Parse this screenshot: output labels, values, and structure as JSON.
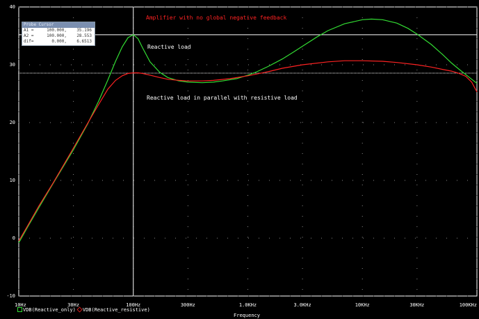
{
  "chart_data": {
    "type": "line",
    "x_scale": "log",
    "xlim": [
      10,
      100000
    ],
    "ylim": [
      -10,
      40
    ],
    "grid": "dotted",
    "x_ticks": [
      {
        "value": 10,
        "label": "10Hz"
      },
      {
        "value": 30,
        "label": "30Hz"
      },
      {
        "value": 100,
        "label": "100Hz"
      },
      {
        "value": 300,
        "label": "300Hz"
      },
      {
        "value": 1000,
        "label": "1.0KHz"
      },
      {
        "value": 3000,
        "label": "3.0KHz"
      },
      {
        "value": 10000,
        "label": "10KHz"
      },
      {
        "value": 30000,
        "label": "30KHz"
      },
      {
        "value": 100000,
        "label": "100KHz"
      }
    ],
    "y_ticks": [
      {
        "value": 40,
        "label": "40"
      },
      {
        "value": 30,
        "label": "30"
      },
      {
        "value": 20,
        "label": "20"
      },
      {
        "value": 10,
        "label": "10"
      },
      {
        "value": 0,
        "label": "0"
      },
      {
        "value": -10,
        "label": "-10"
      }
    ],
    "xlabel": "Frequency",
    "series": [
      {
        "name": "VDB(Reactive_only)",
        "color": "#33dd33",
        "x": [
          10,
          12,
          15,
          20,
          25,
          30,
          40,
          50,
          60,
          70,
          80,
          90,
          100,
          110,
          120,
          140,
          170,
          200,
          250,
          300,
          400,
          500,
          600,
          800,
          1000,
          1200,
          1500,
          2000,
          2500,
          3000,
          4000,
          5000,
          7000,
          10000,
          12000,
          15000,
          20000,
          25000,
          30000,
          40000,
          50000,
          60000,
          70000,
          80000,
          90000,
          100000
        ],
        "y": [
          -0.8,
          2.0,
          5.3,
          9.5,
          12.7,
          15.3,
          19.8,
          23.8,
          27.4,
          30.6,
          33.1,
          34.7,
          35.2,
          34.5,
          33.0,
          30.5,
          28.7,
          27.8,
          27.2,
          27.0,
          26.9,
          27.0,
          27.2,
          27.6,
          28.2,
          28.8,
          29.7,
          31.0,
          32.2,
          33.2,
          34.8,
          35.9,
          37.1,
          37.8,
          37.9,
          37.8,
          37.2,
          36.3,
          35.3,
          33.5,
          31.8,
          30.3,
          29.2,
          28.3,
          27.5,
          26.8
        ]
      },
      {
        "name": "VDB(Reactive_resistive)",
        "color": "#ff2222",
        "x": [
          10,
          12,
          15,
          20,
          25,
          30,
          40,
          50,
          60,
          70,
          80,
          90,
          100,
          110,
          120,
          140,
          170,
          200,
          250,
          300,
          400,
          500,
          700,
          1000,
          1500,
          2000,
          3000,
          5000,
          7000,
          10000,
          15000,
          20000,
          30000,
          40000,
          50000,
          60000,
          70000,
          80000,
          90000,
          100000
        ],
        "y": [
          -0.5,
          2.2,
          5.6,
          9.6,
          12.9,
          15.6,
          19.9,
          23.2,
          25.8,
          27.3,
          28.1,
          28.5,
          28.6,
          28.6,
          28.5,
          28.2,
          27.8,
          27.5,
          27.3,
          27.2,
          27.2,
          27.3,
          27.6,
          28.1,
          28.8,
          29.4,
          30.0,
          30.5,
          30.7,
          30.7,
          30.6,
          30.4,
          30.0,
          29.6,
          29.2,
          28.9,
          28.5,
          28.0,
          27.0,
          25.3
        ]
      }
    ],
    "annotations": [
      {
        "text": "Amplifier with no global negative feedback",
        "color": "#ff2222"
      },
      {
        "text": "Reactive load",
        "color": "#ffffff"
      },
      {
        "text": "Reactive load in parallel with resistive load",
        "color": "#ffffff"
      }
    ],
    "cursors": {
      "title": "Probe Cursor",
      "rows": [
        {
          "name": "A1 =",
          "x": "100.000,",
          "y": "35.196"
        },
        {
          "name": "A2 =",
          "x": "100.000,",
          "y": "28.553"
        },
        {
          "name": "dif=",
          "x": "0.000,",
          "y": "6.6513"
        }
      ],
      "x": [
        100,
        100
      ],
      "y": [
        35.196,
        28.553
      ],
      "colors": [
        "#ffffff",
        "#ffffff"
      ]
    }
  }
}
